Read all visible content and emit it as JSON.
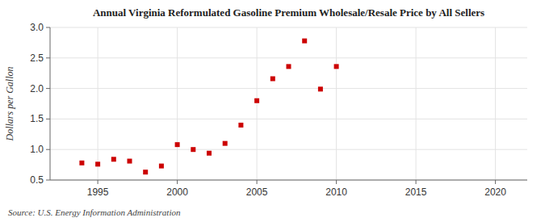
{
  "chart_data": {
    "type": "scatter",
    "title": "Annual Virginia Reformulated Gasoline Premium Wholesale/Resale Price by All Sellers",
    "y_label": "Dollars per Gallon",
    "annotations": [
      "Source: U.S. Energy Information Administration"
    ],
    "x": [
      1994,
      1995,
      1996,
      1997,
      1998,
      1999,
      2000,
      2001,
      2002,
      2003,
      2004,
      2005,
      2006,
      2007,
      2008,
      2009,
      2010
    ],
    "values": [
      0.78,
      0.76,
      0.84,
      0.81,
      0.63,
      0.73,
      1.08,
      1.0,
      0.94,
      1.1,
      1.4,
      1.8,
      2.16,
      2.36,
      2.78,
      1.99,
      2.36
    ],
    "color": "#cc0000",
    "marker": "square",
    "xlim": [
      1992,
      2022
    ],
    "ylim": [
      0.5,
      3.0
    ],
    "xticks": [
      1995,
      2000,
      2005,
      2010,
      2015,
      2020
    ],
    "yticks": [
      0.5,
      {
        "value": 1.0,
        "label": "1.0"
      },
      1.5,
      {
        "value": 2.0,
        "label": "2.0"
      },
      2.5,
      {
        "value": 3.0,
        "label": "3.0"
      }
    ],
    "grid": true
  }
}
